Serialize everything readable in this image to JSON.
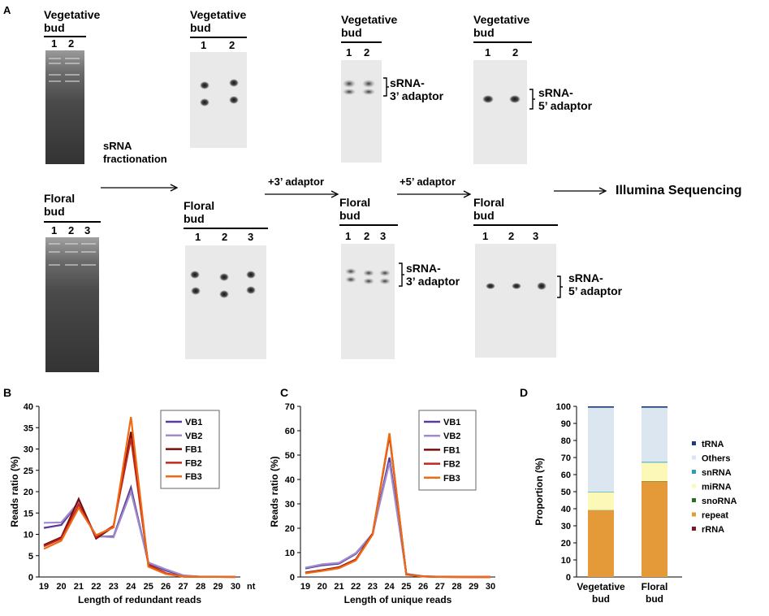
{
  "panelA": {
    "label": "A",
    "veg_title": [
      "Vegetative",
      "bud"
    ],
    "floral_title": [
      "Floral",
      "bud"
    ],
    "veg_lanes": [
      "1",
      "2"
    ],
    "floral_lanes": [
      "1",
      "2",
      "3"
    ],
    "step1": [
      "sRNA",
      "fractionation"
    ],
    "step2": "+3’ adaptor",
    "step3": "+5’ adaptor",
    "final": "Illumina Sequencing",
    "label3": [
      "sRNA-",
      "3’ adaptor"
    ],
    "label5": [
      "sRNA-",
      "5’ adaptor"
    ]
  },
  "chart_data": [
    {
      "panel": "B",
      "type": "line",
      "xlabel": "Length of redundant reads",
      "ylabel": "Reads ratio (%)",
      "x": [
        19,
        20,
        21,
        22,
        23,
        24,
        25,
        26,
        27,
        28,
        29,
        30
      ],
      "x_unit": "nt",
      "ylim": [
        0,
        40
      ],
      "yticks": [
        0,
        5,
        10,
        15,
        20,
        25,
        30,
        35,
        40
      ],
      "series": [
        {
          "name": "VB1",
          "color": "#5b3a9a",
          "values": [
            11.5,
            12.2,
            17.5,
            9.5,
            9.5,
            21,
            3.2,
            1.5,
            0.3,
            0.05,
            0.02,
            0.01
          ]
        },
        {
          "name": "VB2",
          "color": "#a08ccb",
          "values": [
            12.7,
            12.8,
            17.5,
            9.6,
            9.3,
            20,
            3.4,
            1.8,
            0.4,
            0.05,
            0.02,
            0.01
          ]
        },
        {
          "name": "FB1",
          "color": "#7a0c0c",
          "values": [
            7.5,
            9.3,
            18.3,
            9.0,
            11.8,
            34,
            2.6,
            0.8,
            0.1,
            0.02,
            0.01,
            0.0
          ]
        },
        {
          "name": "FB2",
          "color": "#c0281c",
          "values": [
            7.2,
            9.0,
            17.0,
            9.4,
            12.0,
            32.5,
            2.9,
            0.9,
            0.1,
            0.02,
            0.01,
            0.0
          ]
        },
        {
          "name": "FB3",
          "color": "#ef6a12",
          "values": [
            6.6,
            8.5,
            16.2,
            9.8,
            11.6,
            37.5,
            2.4,
            0.7,
            0.1,
            0.02,
            0.01,
            0.0
          ]
        }
      ]
    },
    {
      "panel": "C",
      "type": "line",
      "xlabel": "Length of unique reads",
      "ylabel": "Reads ratio (%)",
      "x": [
        19,
        20,
        21,
        22,
        23,
        24,
        25,
        26,
        27,
        28,
        29,
        30
      ],
      "ylim": [
        0,
        70
      ],
      "yticks": [
        0,
        10,
        20,
        30,
        40,
        50,
        60,
        70
      ],
      "series": [
        {
          "name": "VB1",
          "color": "#5b3a9a",
          "values": [
            3.5,
            4.8,
            5.5,
            9.5,
            17.5,
            49,
            1.2,
            0.3,
            0.1,
            0.02,
            0.01,
            0.0
          ]
        },
        {
          "name": "VB2",
          "color": "#a08ccb",
          "values": [
            3.8,
            5.2,
            5.8,
            9.8,
            17.8,
            47,
            1.3,
            0.3,
            0.1,
            0.02,
            0.01,
            0.0
          ]
        },
        {
          "name": "FB1",
          "color": "#7a0c0c",
          "values": [
            1.8,
            2.8,
            4.0,
            7.2,
            17.8,
            58,
            1.0,
            0.2,
            0.05,
            0.01,
            0.0,
            0.0
          ]
        },
        {
          "name": "FB2",
          "color": "#c0281c",
          "values": [
            1.6,
            2.6,
            3.8,
            7.0,
            17.6,
            58.5,
            1.0,
            0.2,
            0.05,
            0.01,
            0.0,
            0.0
          ]
        },
        {
          "name": "FB3",
          "color": "#ef6a12",
          "values": [
            1.5,
            2.5,
            3.6,
            6.8,
            17.4,
            59,
            0.9,
            0.2,
            0.05,
            0.01,
            0.0,
            0.0
          ]
        }
      ]
    },
    {
      "panel": "D",
      "type": "bar",
      "stacked": true,
      "ylabel": "Proportion (%)",
      "ylim": [
        0,
        100
      ],
      "yticks": [
        0,
        10,
        20,
        30,
        40,
        50,
        60,
        70,
        80,
        90,
        100
      ],
      "categories": [
        [
          "Vegetative",
          "bud"
        ],
        [
          "Floral",
          "bud"
        ]
      ],
      "series": [
        {
          "name": "rRNA",
          "color": "#7a1a2a",
          "values": [
            0.0,
            0.0
          ]
        },
        {
          "name": "repeat",
          "color": "#e59a3a",
          "values": [
            39.0,
            56.0
          ]
        },
        {
          "name": "snoRNA",
          "color": "#2c6a2a",
          "values": [
            0.2,
            0.2
          ]
        },
        {
          "name": "miRNA",
          "color": "#fbf8b8",
          "values": [
            10.5,
            10.8
          ]
        },
        {
          "name": "snRNA",
          "color": "#2aa0b8",
          "values": [
            0.3,
            0.5
          ]
        },
        {
          "name": "Others",
          "color": "#dbe6f1",
          "values": [
            49.2,
            31.7
          ]
        },
        {
          "name": "tRNA",
          "color": "#1c3c7a",
          "values": [
            0.8,
            0.8
          ]
        }
      ],
      "legend_order": [
        "tRNA",
        "Others",
        "snRNA",
        "miRNA",
        "snoRNA",
        "repeat",
        "rRNA"
      ]
    }
  ]
}
